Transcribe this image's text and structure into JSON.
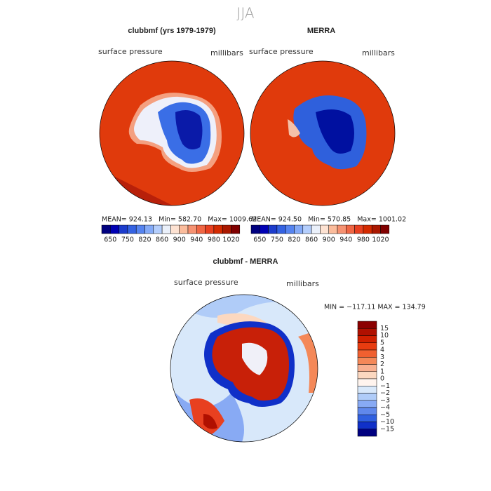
{
  "title": "JJA",
  "panels": [
    {
      "title": "clubbmf (yrs 1979-1979)",
      "left_label": "surface pressure",
      "right_label": "millibars",
      "stats": "MEAN= 924.13   Min= 582.70   Max= 1009.62"
    },
    {
      "title": "MERRA",
      "left_label": "surface pressure",
      "right_label": "millibars",
      "stats": "MEAN= 924.50   Min= 570.85   Max= 1001.02"
    }
  ],
  "colorbar": {
    "colors": [
      "#00007f",
      "#0000b4",
      "#1c3ccc",
      "#3462e2",
      "#5684f0",
      "#84aaf8",
      "#b4cefc",
      "#eaf0fa",
      "#fde2d2",
      "#fbbc9c",
      "#f69272",
      "#f06644",
      "#e84020",
      "#d42a00",
      "#aa1800",
      "#800000"
    ],
    "labels": [
      "650",
      "750",
      "820",
      "860",
      "900",
      "940",
      "980",
      "1020"
    ]
  },
  "diff": {
    "title": "clubbmf - MERRA",
    "left_label": "surface pressure",
    "right_label": "millibars",
    "minmax": "MIN = −117.11 MAX = 134.79",
    "colorbar": {
      "colors": [
        "#8b0000",
        "#b01000",
        "#d02000",
        "#e83c10",
        "#f06030",
        "#f48858",
        "#f8b090",
        "#fcd8c0",
        "#fff4ee",
        "#d8e8fa",
        "#b0ccf8",
        "#88aaf4",
        "#6088ec",
        "#3060e0",
        "#1030c8",
        "#000080"
      ],
      "labels": [
        "15",
        "10",
        "5",
        "4",
        "3",
        "2",
        "1",
        "0",
        "−1",
        "−2",
        "−3",
        "−4",
        "−5",
        "−10",
        "−15"
      ]
    }
  }
}
